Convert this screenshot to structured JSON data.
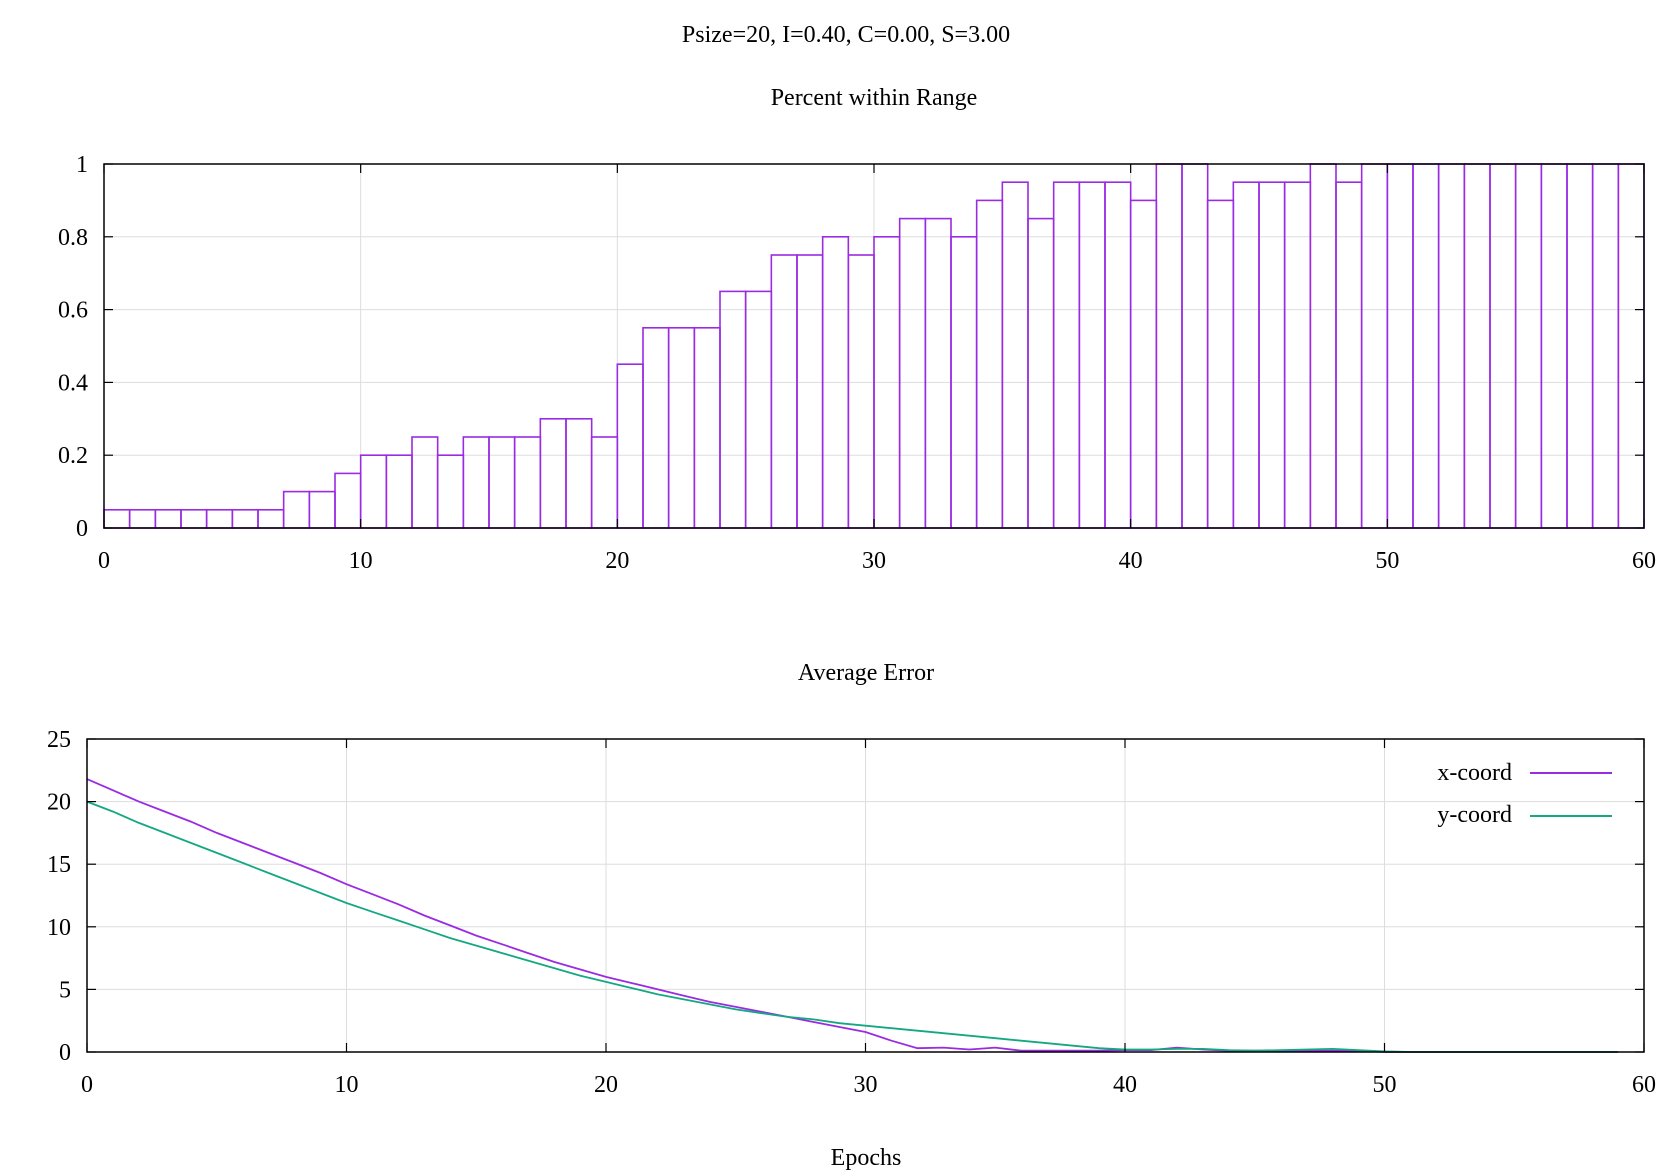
{
  "figure": {
    "title": "Psize=20, I=0.40, C=0.00, S=3.00"
  },
  "colors": {
    "purple": "#9a2be3",
    "teal": "#14a882",
    "grid": "#dddddd",
    "axis": "#000000"
  },
  "chart_data": [
    {
      "type": "bar",
      "title": "Percent within Range",
      "xlabel": "",
      "ylabel": "",
      "xlim": [
        0,
        60
      ],
      "ylim": [
        0,
        1
      ],
      "xticks": [
        0,
        10,
        20,
        30,
        40,
        50,
        60
      ],
      "xtick_labels": [
        "0",
        "10",
        "20",
        "30",
        "40",
        "50",
        "60"
      ],
      "yticks": [
        0,
        0.2,
        0.4,
        0.6,
        0.8,
        1
      ],
      "ytick_labels": [
        "0",
        "0.2",
        "0.4",
        "0.6",
        "0.8",
        "1"
      ],
      "grid": true,
      "legend": "none",
      "bar_color": "#9a2be3",
      "x": [
        0,
        1,
        2,
        3,
        4,
        5,
        6,
        7,
        8,
        9,
        10,
        11,
        12,
        13,
        14,
        15,
        16,
        17,
        18,
        19,
        20,
        21,
        22,
        23,
        24,
        25,
        26,
        27,
        28,
        29,
        30,
        31,
        32,
        33,
        34,
        35,
        36,
        37,
        38,
        39,
        40,
        41,
        42,
        43,
        44,
        45,
        46,
        47,
        48,
        49,
        50,
        51,
        52,
        53,
        54,
        55,
        56,
        57,
        58,
        59
      ],
      "values": [
        0.05,
        0.05,
        0.05,
        0.05,
        0.05,
        0.05,
        0.05,
        0.1,
        0.1,
        0.15,
        0.2,
        0.2,
        0.25,
        0.2,
        0.25,
        0.25,
        0.25,
        0.3,
        0.3,
        0.25,
        0.45,
        0.55,
        0.55,
        0.55,
        0.65,
        0.65,
        0.75,
        0.75,
        0.8,
        0.75,
        0.8,
        0.85,
        0.85,
        0.8,
        0.9,
        0.95,
        0.85,
        0.95,
        0.95,
        0.95,
        0.9,
        1,
        1,
        0.9,
        0.95,
        0.95,
        0.95,
        1,
        0.95,
        1,
        1,
        1,
        1,
        1,
        1,
        1,
        1,
        1,
        1,
        1
      ]
    },
    {
      "type": "line",
      "title": "Average Error",
      "xlabel": "Epochs",
      "ylabel": "",
      "xlim": [
        0,
        60
      ],
      "ylim": [
        0,
        25
      ],
      "xticks": [
        0,
        10,
        20,
        30,
        40,
        50,
        60
      ],
      "xtick_labels": [
        "0",
        "10",
        "20",
        "30",
        "40",
        "50",
        "60"
      ],
      "yticks": [
        0,
        5,
        10,
        15,
        20,
        25
      ],
      "ytick_labels": [
        "0",
        "5",
        "10",
        "15",
        "20",
        "25"
      ],
      "grid": true,
      "legend": "top-right",
      "series": [
        {
          "name": "x-coord",
          "color": "#9a2be3",
          "x": [
            0,
            1,
            2,
            3,
            4,
            5,
            6,
            7,
            8,
            9,
            10,
            11,
            12,
            13,
            14,
            15,
            16,
            17,
            18,
            19,
            20,
            21,
            22,
            23,
            24,
            25,
            26,
            27,
            28,
            29,
            30,
            31,
            32,
            33,
            34,
            35,
            36,
            37,
            38,
            39,
            40,
            41,
            42,
            43,
            44,
            45,
            46,
            47,
            48,
            49,
            50,
            51,
            52,
            53,
            54,
            55,
            56,
            57,
            58,
            59
          ],
          "values": [
            21.8,
            20.9,
            20.0,
            19.2,
            18.4,
            17.5,
            16.7,
            15.9,
            15.1,
            14.3,
            13.4,
            12.6,
            11.8,
            10.9,
            10.1,
            9.3,
            8.6,
            7.9,
            7.2,
            6.6,
            6.0,
            5.5,
            5.0,
            4.5,
            4.0,
            3.6,
            3.2,
            2.8,
            2.4,
            2.0,
            1.6,
            0.9,
            0.3,
            0.35,
            0.2,
            0.35,
            0.1,
            0.1,
            0.1,
            0.1,
            0.15,
            0.15,
            0.35,
            0.2,
            0.1,
            0.1,
            0.1,
            0.1,
            0.1,
            0.1,
            0.0,
            0.0,
            0.0,
            0.0,
            0.0,
            0.0,
            0.0,
            0.0,
            0.0,
            0.0
          ]
        },
        {
          "name": "y-coord",
          "color": "#14a882",
          "x": [
            0,
            1,
            2,
            3,
            4,
            5,
            6,
            7,
            8,
            9,
            10,
            11,
            12,
            13,
            14,
            15,
            16,
            17,
            18,
            19,
            20,
            21,
            22,
            23,
            24,
            25,
            26,
            27,
            28,
            29,
            30,
            31,
            32,
            33,
            34,
            35,
            36,
            37,
            38,
            39,
            40,
            41,
            42,
            43,
            44,
            45,
            46,
            47,
            48,
            49,
            50,
            51,
            52,
            53,
            54,
            55,
            56,
            57,
            58,
            59
          ],
          "values": [
            20.0,
            19.2,
            18.3,
            17.5,
            16.7,
            15.9,
            15.1,
            14.3,
            13.5,
            12.7,
            11.9,
            11.2,
            10.5,
            9.8,
            9.1,
            8.5,
            7.9,
            7.3,
            6.7,
            6.1,
            5.6,
            5.1,
            4.6,
            4.2,
            3.8,
            3.4,
            3.1,
            2.8,
            2.6,
            2.3,
            2.1,
            1.9,
            1.7,
            1.5,
            1.3,
            1.1,
            0.9,
            0.7,
            0.5,
            0.3,
            0.2,
            0.2,
            0.25,
            0.25,
            0.15,
            0.1,
            0.15,
            0.2,
            0.25,
            0.15,
            0.05,
            0.0,
            0.0,
            0.0,
            0.0,
            0.0,
            0.0,
            0.0,
            0.0,
            0.0
          ]
        }
      ]
    }
  ]
}
